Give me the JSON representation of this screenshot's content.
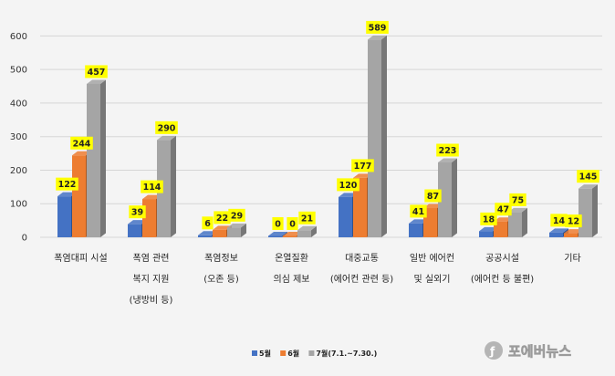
{
  "chart_data": {
    "type": "bar",
    "title": "",
    "xlabel": "",
    "ylabel": "",
    "ylim": [
      0,
      650
    ],
    "yticks": [
      0,
      100,
      200,
      300,
      400,
      500,
      600
    ],
    "grid": true,
    "legend_position": "bottom-center",
    "categories": [
      [
        "폭염대피 시설"
      ],
      [
        "폭염 관련",
        "복지 지원",
        "(냉방비 등)"
      ],
      [
        "폭염정보",
        "(오존 등)"
      ],
      [
        "온열질환",
        "의심 제보"
      ],
      [
        "대중교통",
        "(에어컨 관련 등)"
      ],
      [
        "일반 에어컨",
        "및 실외기"
      ],
      [
        "공공시설",
        "(에어컨 등 불편)"
      ],
      [
        "기타"
      ]
    ],
    "series": [
      {
        "name": "5월",
        "color": "#4472c4",
        "values": [
          122,
          39,
          6,
          0,
          120,
          41,
          18,
          14
        ]
      },
      {
        "name": "6월",
        "color": "#ed7d31",
        "values": [
          244,
          114,
          22,
          0,
          177,
          87,
          47,
          12
        ]
      },
      {
        "name": "7월(7.1.~7.30.)",
        "color": "#a5a5a5",
        "values": [
          457,
          290,
          29,
          21,
          589,
          223,
          75,
          145
        ]
      }
    ],
    "data_label_bg": "#ffff00"
  },
  "watermark": {
    "text": "포에버뉴스"
  }
}
